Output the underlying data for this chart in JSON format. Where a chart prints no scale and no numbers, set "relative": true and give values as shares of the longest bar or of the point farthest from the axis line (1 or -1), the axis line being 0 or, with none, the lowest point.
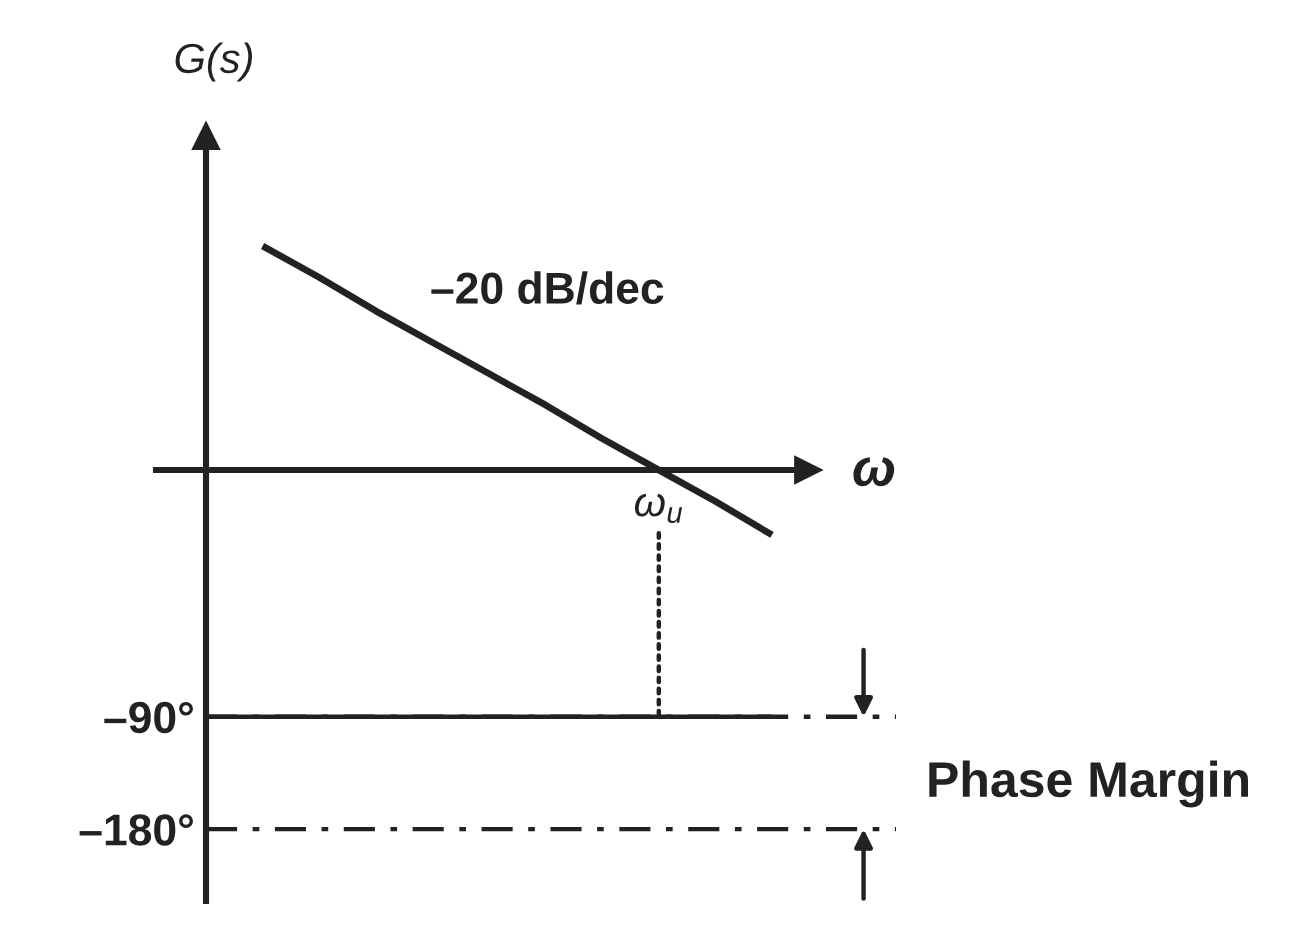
{
  "chart_data": [
    {
      "type": "line",
      "relative": true,
      "categories": [
        null,
        null,
        null,
        null,
        null,
        null,
        null,
        null,
        null,
        null,
        null
      ],
      "series": [
        {
          "color": "#222222",
          "values": [
            null,
            1.0,
            0.86,
            0.71,
            0.57,
            0.43,
            0.29,
            0.14,
            0.0,
            -0.14,
            -0.29
          ]
        }
      ],
      "xlabel": "ω",
      "ylabel": "G(s)",
      "annotations": [
        "–20 dB/dec",
        {
          "text": "ω$_{u}$",
          "y": 0
        }
      ]
    },
    {
      "type": "line",
      "tick_labels": "y",
      "categories": [
        null,
        null,
        null,
        null,
        null,
        null,
        null,
        null,
        null,
        null,
        null
      ],
      "series": [
        {
          "color": "#222222",
          "values": [
            -90,
            -90,
            -90,
            -90,
            -90,
            -90,
            -90,
            -90,
            -90,
            -90,
            -90
          ]
        }
      ],
      "ylim": [
        -240,
        50
      ],
      "yticks": [
        {
          "value": -90,
          "label": "–90°"
        },
        {
          "value": -180,
          "label": "–180°"
        }
      ],
      "ref_lines": [
        {
          "axis": "y",
          "value": -90,
          "line_style": "dashdot",
          "color": "#222222"
        },
        {
          "axis": "y",
          "value": -180,
          "line_style": "dashdot",
          "color": "#222222"
        }
      ],
      "annotations": [
        "Phase Margin"
      ]
    }
  ]
}
